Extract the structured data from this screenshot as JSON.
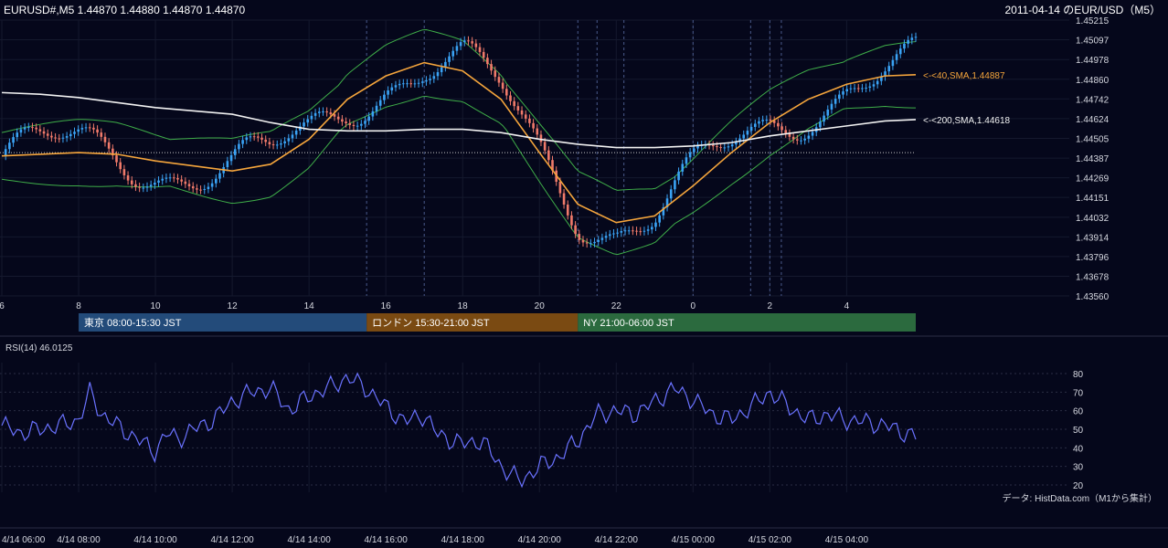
{
  "header": {
    "symbol_info": "EURUSD#,M5 1.44870 1.44880 1.44870 1.44870",
    "title": "2011-04-14 のEUR/USD（M5）"
  },
  "chart_data": [
    {
      "type": "candlestick",
      "name": "price-panel",
      "ylim": [
        1.4356,
        1.45215
      ],
      "yticks": [
        "1.45215",
        "1.45097",
        "1.44978",
        "1.44860",
        "1.44742",
        "1.44624",
        "1.44505",
        "1.44387",
        "1.44269",
        "1.44151",
        "1.44032",
        "1.43914",
        "1.43796",
        "1.43678",
        "1.43560"
      ],
      "xlim_hours": [
        6,
        29.8
      ],
      "xticks": [
        "6",
        "8",
        "10",
        "12",
        "14",
        "16",
        "18",
        "20",
        "22",
        "0",
        "2",
        "4"
      ],
      "ohlc": [],
      "series": [
        {
          "label": "<-<40,SMA,1.44887",
          "color": "#f5a53c",
          "points": [
            [
              6,
              1.444
            ],
            [
              7,
              1.4441
            ],
            [
              8,
              1.4442
            ],
            [
              9,
              1.4441
            ],
            [
              10,
              1.4437
            ],
            [
              11,
              1.4434
            ],
            [
              12,
              1.4431
            ],
            [
              13,
              1.4435
            ],
            [
              14,
              1.445
            ],
            [
              15,
              1.4474
            ],
            [
              16,
              1.4488
            ],
            [
              17,
              1.4496
            ],
            [
              18,
              1.4491
            ],
            [
              19,
              1.4474
            ],
            [
              20,
              1.4442
            ],
            [
              21,
              1.4411
            ],
            [
              22,
              1.44
            ],
            [
              23,
              1.4404
            ],
            [
              24,
              1.4422
            ],
            [
              25,
              1.4442
            ],
            [
              26,
              1.446
            ],
            [
              27,
              1.4474
            ],
            [
              28,
              1.4483
            ],
            [
              29,
              1.4488
            ],
            [
              29.8,
              1.44887
            ]
          ]
        },
        {
          "label": "<-<200,SMA,1.44618",
          "color": "#f2f2f2",
          "points": [
            [
              6,
              1.4478
            ],
            [
              7,
              1.4477
            ],
            [
              8,
              1.4475
            ],
            [
              9,
              1.4472
            ],
            [
              10,
              1.4469
            ],
            [
              11,
              1.4467
            ],
            [
              12,
              1.4465
            ],
            [
              13,
              1.446
            ],
            [
              14,
              1.4456
            ],
            [
              15,
              1.4455
            ],
            [
              16,
              1.4455
            ],
            [
              17,
              1.4456
            ],
            [
              18,
              1.4456
            ],
            [
              19,
              1.4454
            ],
            [
              20,
              1.445
            ],
            [
              21,
              1.4447
            ],
            [
              22,
              1.4445
            ],
            [
              23,
              1.4445
            ],
            [
              24,
              1.4446
            ],
            [
              25,
              1.4448
            ],
            [
              26,
              1.4452
            ],
            [
              27,
              1.4455
            ],
            [
              28,
              1.4458
            ],
            [
              29,
              1.4461
            ],
            [
              29.8,
              1.44618
            ]
          ]
        }
      ],
      "bollinger_color": "#3fae49",
      "reference_line": 1.4442,
      "sessions": [
        {
          "label": "東京 08:00-15:30 JST",
          "color": "#234b7a"
        },
        {
          "label": "ロンドン 15:30-21:00 JST",
          "color": "#7a4a12"
        },
        {
          "label": "NY 21:00-06:00 JST",
          "color": "#2b6a3e"
        }
      ]
    },
    {
      "type": "line",
      "name": "rsi-panel",
      "title": "RSI(14) 46.0125",
      "ylim": [
        15,
        85
      ],
      "yticks": [
        "80",
        "70",
        "60",
        "50",
        "40",
        "30",
        "20"
      ],
      "color": "#6a72ff",
      "source_note": "データ: HistData.com（M1から集計）",
      "xticks": [
        "4/14 06:00",
        "4/14 08:00",
        "4/14 10:00",
        "4/14 12:00",
        "4/14 14:00",
        "4/14 16:00",
        "4/14 18:00",
        "4/14 20:00",
        "4/14 22:00",
        "4/15 00:00",
        "4/15 02:00",
        "4/15 04:00"
      ],
      "points": [
        [
          6,
          52
        ],
        [
          6.5,
          48
        ],
        [
          7,
          50
        ],
        [
          7.5,
          52
        ],
        [
          8,
          55
        ],
        [
          8.3,
          70
        ],
        [
          8.6,
          58
        ],
        [
          9,
          52
        ],
        [
          9.5,
          45
        ],
        [
          10,
          38
        ],
        [
          10.3,
          48
        ],
        [
          10.6,
          45
        ],
        [
          11,
          50
        ],
        [
          11.5,
          55
        ],
        [
          12,
          65
        ],
        [
          12.5,
          70
        ],
        [
          13,
          72
        ],
        [
          13.5,
          60
        ],
        [
          14,
          68
        ],
        [
          14.5,
          72
        ],
        [
          15,
          78
        ],
        [
          15.5,
          72
        ],
        [
          16,
          62
        ],
        [
          16.5,
          54
        ],
        [
          17,
          58
        ],
        [
          17.3,
          48
        ],
        [
          17.6,
          45
        ],
        [
          18,
          42
        ],
        [
          18.5,
          44
        ],
        [
          19,
          30
        ],
        [
          19.5,
          22
        ],
        [
          20,
          30
        ],
        [
          20.5,
          35
        ],
        [
          21,
          44
        ],
        [
          21.5,
          58
        ],
        [
          22,
          60
        ],
        [
          22.5,
          58
        ],
        [
          23,
          65
        ],
        [
          23.5,
          72
        ],
        [
          24,
          66
        ],
        [
          24.5,
          58
        ],
        [
          25,
          55
        ],
        [
          25.5,
          62
        ],
        [
          26,
          70
        ],
        [
          26.5,
          62
        ],
        [
          27,
          55
        ],
        [
          27.5,
          58
        ],
        [
          28,
          55
        ],
        [
          28.5,
          54
        ],
        [
          29,
          52
        ],
        [
          29.8,
          46
        ]
      ]
    }
  ]
}
